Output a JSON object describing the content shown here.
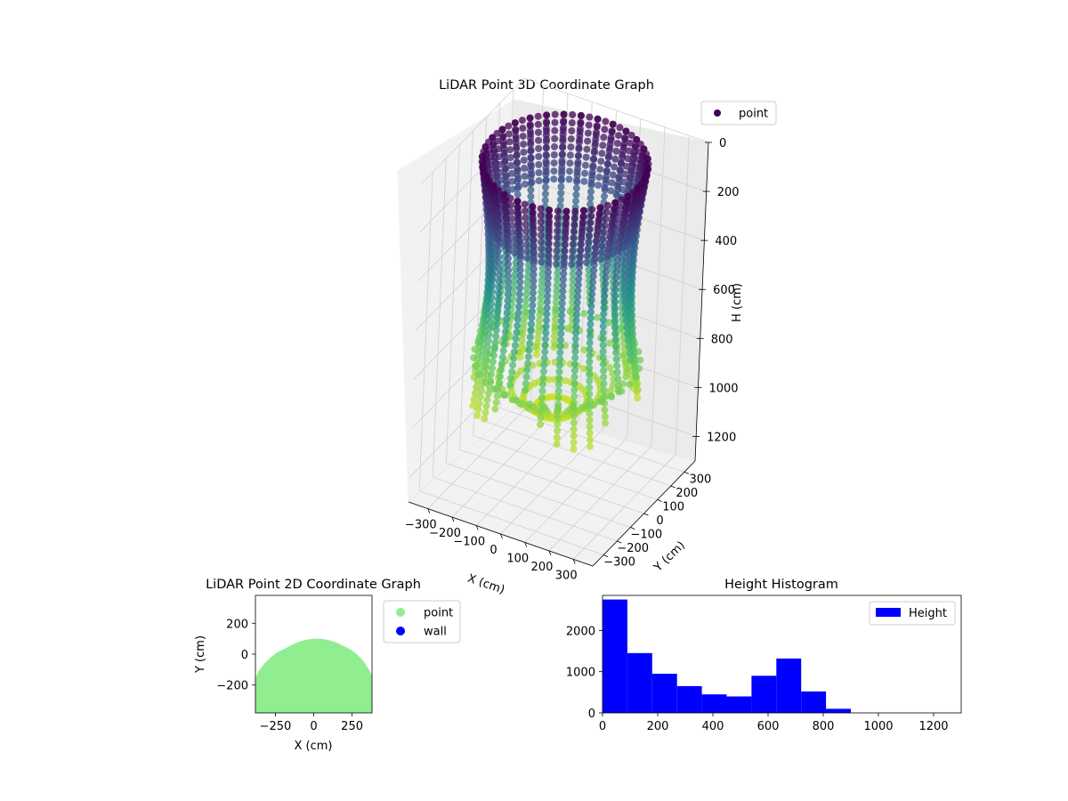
{
  "chart_data": [
    {
      "type": "scatter3d",
      "title": "LiDAR Point 3D Coordinate Graph",
      "xlabel": "X (cm)",
      "ylabel": "Y (cm)",
      "zlabel": "H (cm)",
      "xlim": [
        -380,
        380
      ],
      "ylim": [
        -380,
        380
      ],
      "zlim": [
        0,
        1300
      ],
      "z_inverted": true,
      "xticks": [
        "−300",
        "−200",
        "−100",
        "0",
        "100",
        "200",
        "300"
      ],
      "yticks": [
        "−300",
        "−200",
        "−100",
        "0",
        "100",
        "200",
        "300"
      ],
      "zticks": [
        "0",
        "200",
        "400",
        "600",
        "800",
        "1000",
        "1200"
      ],
      "legend": [
        "point"
      ],
      "legend_position": "top-right",
      "colormap": "viridis",
      "shape": "cylindrical shell, radius about 300 cm, heights from about 0 to 1000 cm, darker points near the top and lighter yellow near the bottom",
      "color_low": "#440154",
      "color_high": "#c8e020"
    },
    {
      "type": "scatter",
      "title": "LiDAR Point 2D Coordinate Graph",
      "xlabel": "X (cm)",
      "ylabel": "Y (cm)",
      "xlim": [
        -380,
        380
      ],
      "ylim": [
        -380,
        380
      ],
      "xticks": [
        "−250",
        "0",
        "250"
      ],
      "yticks": [
        "−200",
        "0",
        "200"
      ],
      "legend": [
        "point",
        "wall"
      ],
      "legend_position": "outside-right",
      "series_colors": {
        "point": "#90ee90",
        "wall": "#0000ff"
      },
      "point_region": {
        "x": [
          -380,
          -360,
          -320,
          -280,
          -240,
          -200,
          -160,
          -120,
          -80,
          -40,
          0,
          40,
          80,
          120,
          160,
          200,
          240,
          280,
          320,
          360,
          380
        ],
        "y_top": [
          -160,
          -110,
          -60,
          -20,
          10,
          30,
          50,
          70,
          85,
          95,
          100,
          100,
          95,
          85,
          70,
          50,
          30,
          0,
          -40,
          -100,
          -140
        ]
      }
    },
    {
      "type": "histogram",
      "title": "Height Histogram",
      "legend": [
        "Height"
      ],
      "legend_position": "top-right",
      "color": "#0000ff",
      "xlim": [
        0,
        1300
      ],
      "ylim": [
        0,
        2850
      ],
      "xticks": [
        "0",
        "200",
        "400",
        "600",
        "800",
        "1000",
        "1200"
      ],
      "yticks": [
        "0",
        "1000",
        "2000"
      ],
      "bin_edges": [
        0,
        90,
        180,
        270,
        360,
        450,
        540,
        630,
        720,
        810,
        900
      ],
      "counts": [
        2750,
        1450,
        950,
        650,
        450,
        400,
        900,
        1320,
        520,
        100
      ]
    }
  ]
}
